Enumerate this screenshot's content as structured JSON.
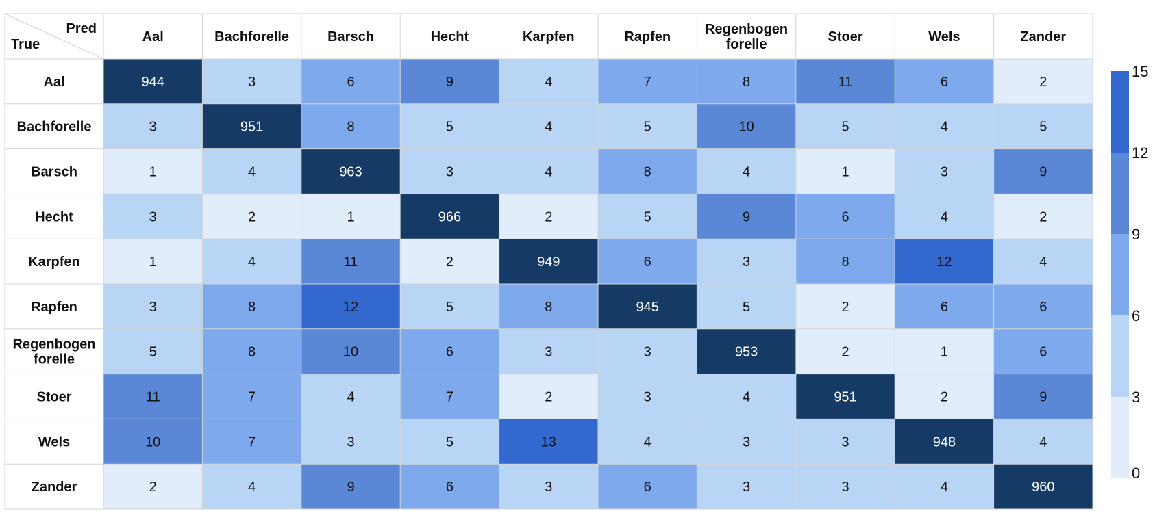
{
  "chart_data": {
    "type": "heatmap",
    "corner": {
      "col_header": "Pred",
      "row_header": "True"
    },
    "col_labels": [
      [
        "Aal"
      ],
      [
        "Bachforelle"
      ],
      [
        "Barsch"
      ],
      [
        "Hecht"
      ],
      [
        "Karpfen"
      ],
      [
        "Rapfen"
      ],
      [
        "Regenbogen",
        "forelle"
      ],
      [
        "Stoer"
      ],
      [
        "Wels"
      ],
      [
        "Zander"
      ]
    ],
    "row_labels": [
      [
        "Aal"
      ],
      [
        "Bachforelle"
      ],
      [
        "Barsch"
      ],
      [
        "Hecht"
      ],
      [
        "Karpfen"
      ],
      [
        "Rapfen"
      ],
      [
        "Regenbogen",
        "forelle"
      ],
      [
        "Stoer"
      ],
      [
        "Wels"
      ],
      [
        "Zander"
      ]
    ],
    "matrix": [
      [
        944,
        3,
        6,
        9,
        4,
        7,
        8,
        11,
        6,
        2
      ],
      [
        3,
        951,
        8,
        5,
        4,
        5,
        10,
        5,
        4,
        5
      ],
      [
        1,
        4,
        963,
        3,
        4,
        8,
        4,
        1,
        3,
        9
      ],
      [
        3,
        2,
        1,
        966,
        2,
        5,
        9,
        6,
        4,
        2
      ],
      [
        1,
        4,
        11,
        2,
        949,
        6,
        3,
        8,
        12,
        4
      ],
      [
        3,
        8,
        12,
        5,
        8,
        945,
        5,
        2,
        6,
        6
      ],
      [
        5,
        8,
        10,
        6,
        3,
        3,
        953,
        2,
        1,
        6
      ],
      [
        11,
        7,
        4,
        7,
        2,
        3,
        4,
        951,
        2,
        9
      ],
      [
        10,
        7,
        3,
        5,
        13,
        4,
        3,
        3,
        948,
        4
      ],
      [
        2,
        4,
        9,
        6,
        3,
        6,
        3,
        3,
        4,
        960
      ]
    ],
    "colorbar": {
      "range": [
        0,
        15
      ],
      "ticks": [
        "0",
        "3",
        "6",
        "9",
        "12",
        "15"
      ],
      "bins": [
        {
          "min": 0,
          "max": 3,
          "color": "#e2edfb"
        },
        {
          "min": 3,
          "max": 6,
          "color": "#b9d5f5"
        },
        {
          "min": 6,
          "max": 9,
          "color": "#7ea9ec"
        },
        {
          "min": 9,
          "max": 12,
          "color": "#5a88d6"
        },
        {
          "min": 12,
          "max": 15,
          "color": "#3369cf"
        }
      ],
      "overflow_color": "#163a66"
    },
    "grid": true
  }
}
